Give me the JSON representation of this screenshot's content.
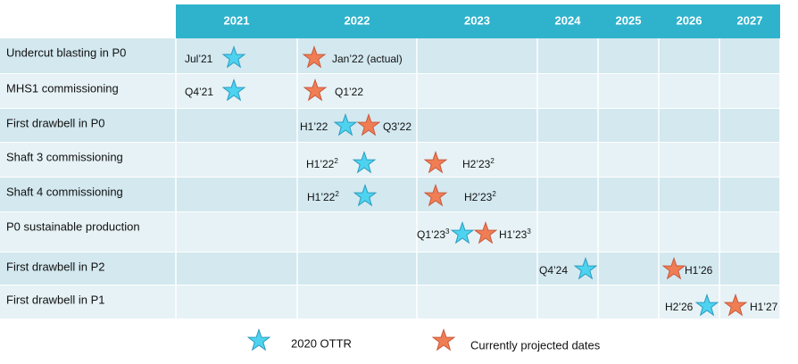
{
  "header": {
    "columns": [
      "2021",
      "2022",
      "2023",
      "2024",
      "2025",
      "2026",
      "2027"
    ]
  },
  "legend": [
    {
      "label": "2020 OTTR",
      "color": "#4dd3ef"
    },
    {
      "label": "Currently projected dates",
      "color": "#f07e55"
    }
  ],
  "rows": [
    {
      "name": "Undercut blasting in P0",
      "ottr": {
        "label": "Jul’21"
      },
      "projected": {
        "label": "Jan’22 (actual)"
      }
    },
    {
      "name": "MHS1 commissioning",
      "ottr": {
        "label": "Q4’21"
      },
      "projected": {
        "label": "Q1’22"
      }
    },
    {
      "name": "First drawbell in P0",
      "ottr": {
        "label": "H1’22"
      },
      "projected": {
        "label": "Q3’22"
      }
    },
    {
      "name": "Shaft 3 commissioning",
      "ottr": {
        "label": "H1’22",
        "note": "2"
      },
      "projected": {
        "label": "H2’23",
        "note": "2"
      }
    },
    {
      "name": "Shaft 4 commissioning",
      "ottr": {
        "label": "H1’22",
        "note": "2"
      },
      "projected": {
        "label": "H2’23",
        "note": "2"
      }
    },
    {
      "name": "P0 sustainable production",
      "ottr": {
        "label": "Q1’23",
        "note": "3"
      },
      "projected": {
        "label": "H1’23",
        "note": "3"
      }
    },
    {
      "name": "First drawbell in P2",
      "ottr": {
        "label": "Q4’24"
      },
      "projected": {
        "label": "H1’26"
      }
    },
    {
      "name": "First drawbell in P1",
      "ottr": {
        "label": "H2’26"
      },
      "projected": {
        "label": "H1’27"
      }
    }
  ]
}
